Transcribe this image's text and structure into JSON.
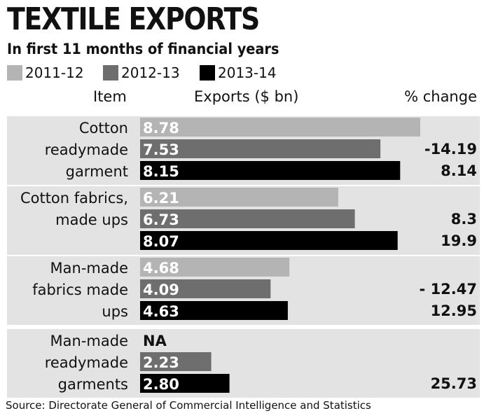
{
  "title": "TEXTILE EXPORTS",
  "subtitle": "In first 11 months of financial years",
  "source": "Source: Directorate General of Commercial Intelligence and Statistics",
  "headers": {
    "item": "Item",
    "exports": "Exports ($ bn)",
    "change": "% change"
  },
  "colors": {
    "2011-12": "#b4b4b4",
    "2012-13": "#6e6e6e",
    "2013-14": "#000000",
    "band": "#e3e3e3"
  },
  "chart_data": {
    "type": "bar",
    "orientation": "horizontal",
    "title": "TEXTILE EXPORTS",
    "subtitle": "In first 11 months of financial years",
    "xlabel": "Exports ($ bn)",
    "xlim": [
      0,
      9
    ],
    "grid": false,
    "legend": "top-left",
    "series_names": [
      "2011-12",
      "2012-13",
      "2013-14"
    ],
    "groups": [
      {
        "label_lines": [
          "Cotton",
          "readymade",
          "garment"
        ],
        "bars": [
          {
            "series": "2011-12",
            "value": 8.78,
            "label": "8.78"
          },
          {
            "series": "2012-13",
            "value": 7.53,
            "label": "7.53"
          },
          {
            "series": "2013-14",
            "value": 8.15,
            "label": "8.15"
          }
        ],
        "pct_change": [
          "",
          "-14.19",
          "8.14"
        ]
      },
      {
        "label_lines": [
          "Cotton fabrics,",
          "made ups",
          ""
        ],
        "bars": [
          {
            "series": "2011-12",
            "value": 6.21,
            "label": "6.21"
          },
          {
            "series": "2012-13",
            "value": 6.73,
            "label": "6.73"
          },
          {
            "series": "2013-14",
            "value": 8.07,
            "label": "8.07"
          }
        ],
        "pct_change": [
          "",
          "8.3",
          "19.9"
        ]
      },
      {
        "label_lines": [
          "Man-made",
          "fabrics made",
          "ups"
        ],
        "bars": [
          {
            "series": "2011-12",
            "value": 4.68,
            "label": "4.68"
          },
          {
            "series": "2012-13",
            "value": 4.09,
            "label": "4.09"
          },
          {
            "series": "2013-14",
            "value": 4.63,
            "label": "4.63"
          }
        ],
        "pct_change": [
          "",
          "- 12.47",
          "12.95"
        ]
      },
      {
        "label_lines": [
          "Man-made",
          "readymade",
          "garments"
        ],
        "bars": [
          {
            "series": "2011-12",
            "value": null,
            "label": "NA"
          },
          {
            "series": "2012-13",
            "value": 2.23,
            "label": "2.23"
          },
          {
            "series": "2013-14",
            "value": 2.8,
            "label": "2.80"
          }
        ],
        "pct_change": [
          "",
          "",
          "25.73"
        ]
      }
    ]
  }
}
